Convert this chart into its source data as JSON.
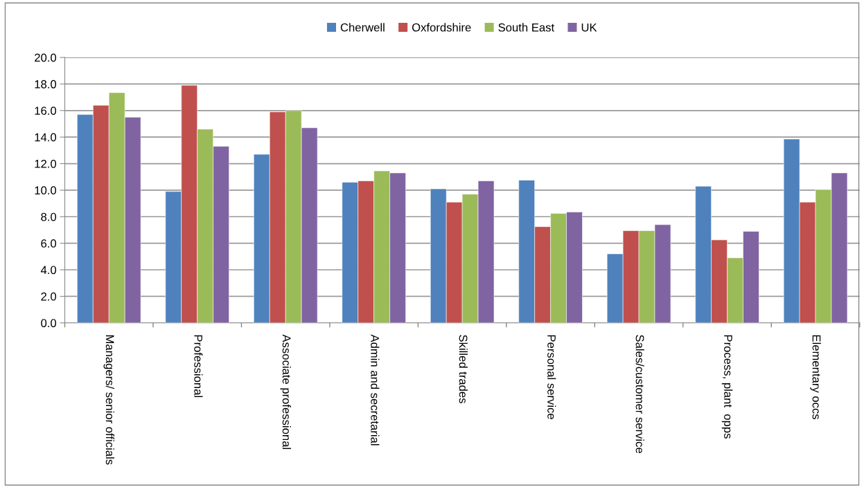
{
  "chart_data": {
    "type": "bar",
    "categories": [
      "Managers/ senior officials",
      "Professional",
      "Associate professional",
      "Admin and secretarial",
      "Skilled trades",
      "Personal service",
      "Sales/customer service",
      "Process, plant  opps",
      "Elementary occs"
    ],
    "series": [
      {
        "name": "Cherwell",
        "color": "#4f81bd",
        "values": [
          15.7,
          9.9,
          12.7,
          10.6,
          10.1,
          10.75,
          5.2,
          10.3,
          13.85
        ]
      },
      {
        "name": "Oxfordshire",
        "color": "#c0504d",
        "values": [
          16.4,
          17.9,
          15.9,
          10.7,
          9.1,
          7.25,
          6.95,
          6.25,
          9.1
        ]
      },
      {
        "name": "South East",
        "color": "#9bbb59",
        "values": [
          17.35,
          14.6,
          16.0,
          11.45,
          9.7,
          8.25,
          6.95,
          4.9,
          10.05
        ]
      },
      {
        "name": "UK",
        "color": "#8064a2",
        "values": [
          15.5,
          13.3,
          14.7,
          11.3,
          10.7,
          8.35,
          7.4,
          6.9,
          11.3
        ]
      }
    ],
    "ylim": [
      0,
      20
    ],
    "yticks": [
      {
        "value": 0,
        "label": "0.0"
      },
      {
        "value": 2,
        "label": "2.0"
      },
      {
        "value": 4,
        "label": "4.0"
      },
      {
        "value": 6,
        "label": "6.0"
      },
      {
        "value": 8,
        "label": "8.0"
      },
      {
        "value": 10,
        "label": "10.0"
      },
      {
        "value": 12,
        "label": "12.0"
      },
      {
        "value": 14,
        "label": "14.0"
      },
      {
        "value": 16,
        "label": "16.0"
      },
      {
        "value": 18,
        "label": "18.0"
      },
      {
        "value": 20,
        "label": "20.0"
      }
    ],
    "grid": "y",
    "legend": "top"
  }
}
